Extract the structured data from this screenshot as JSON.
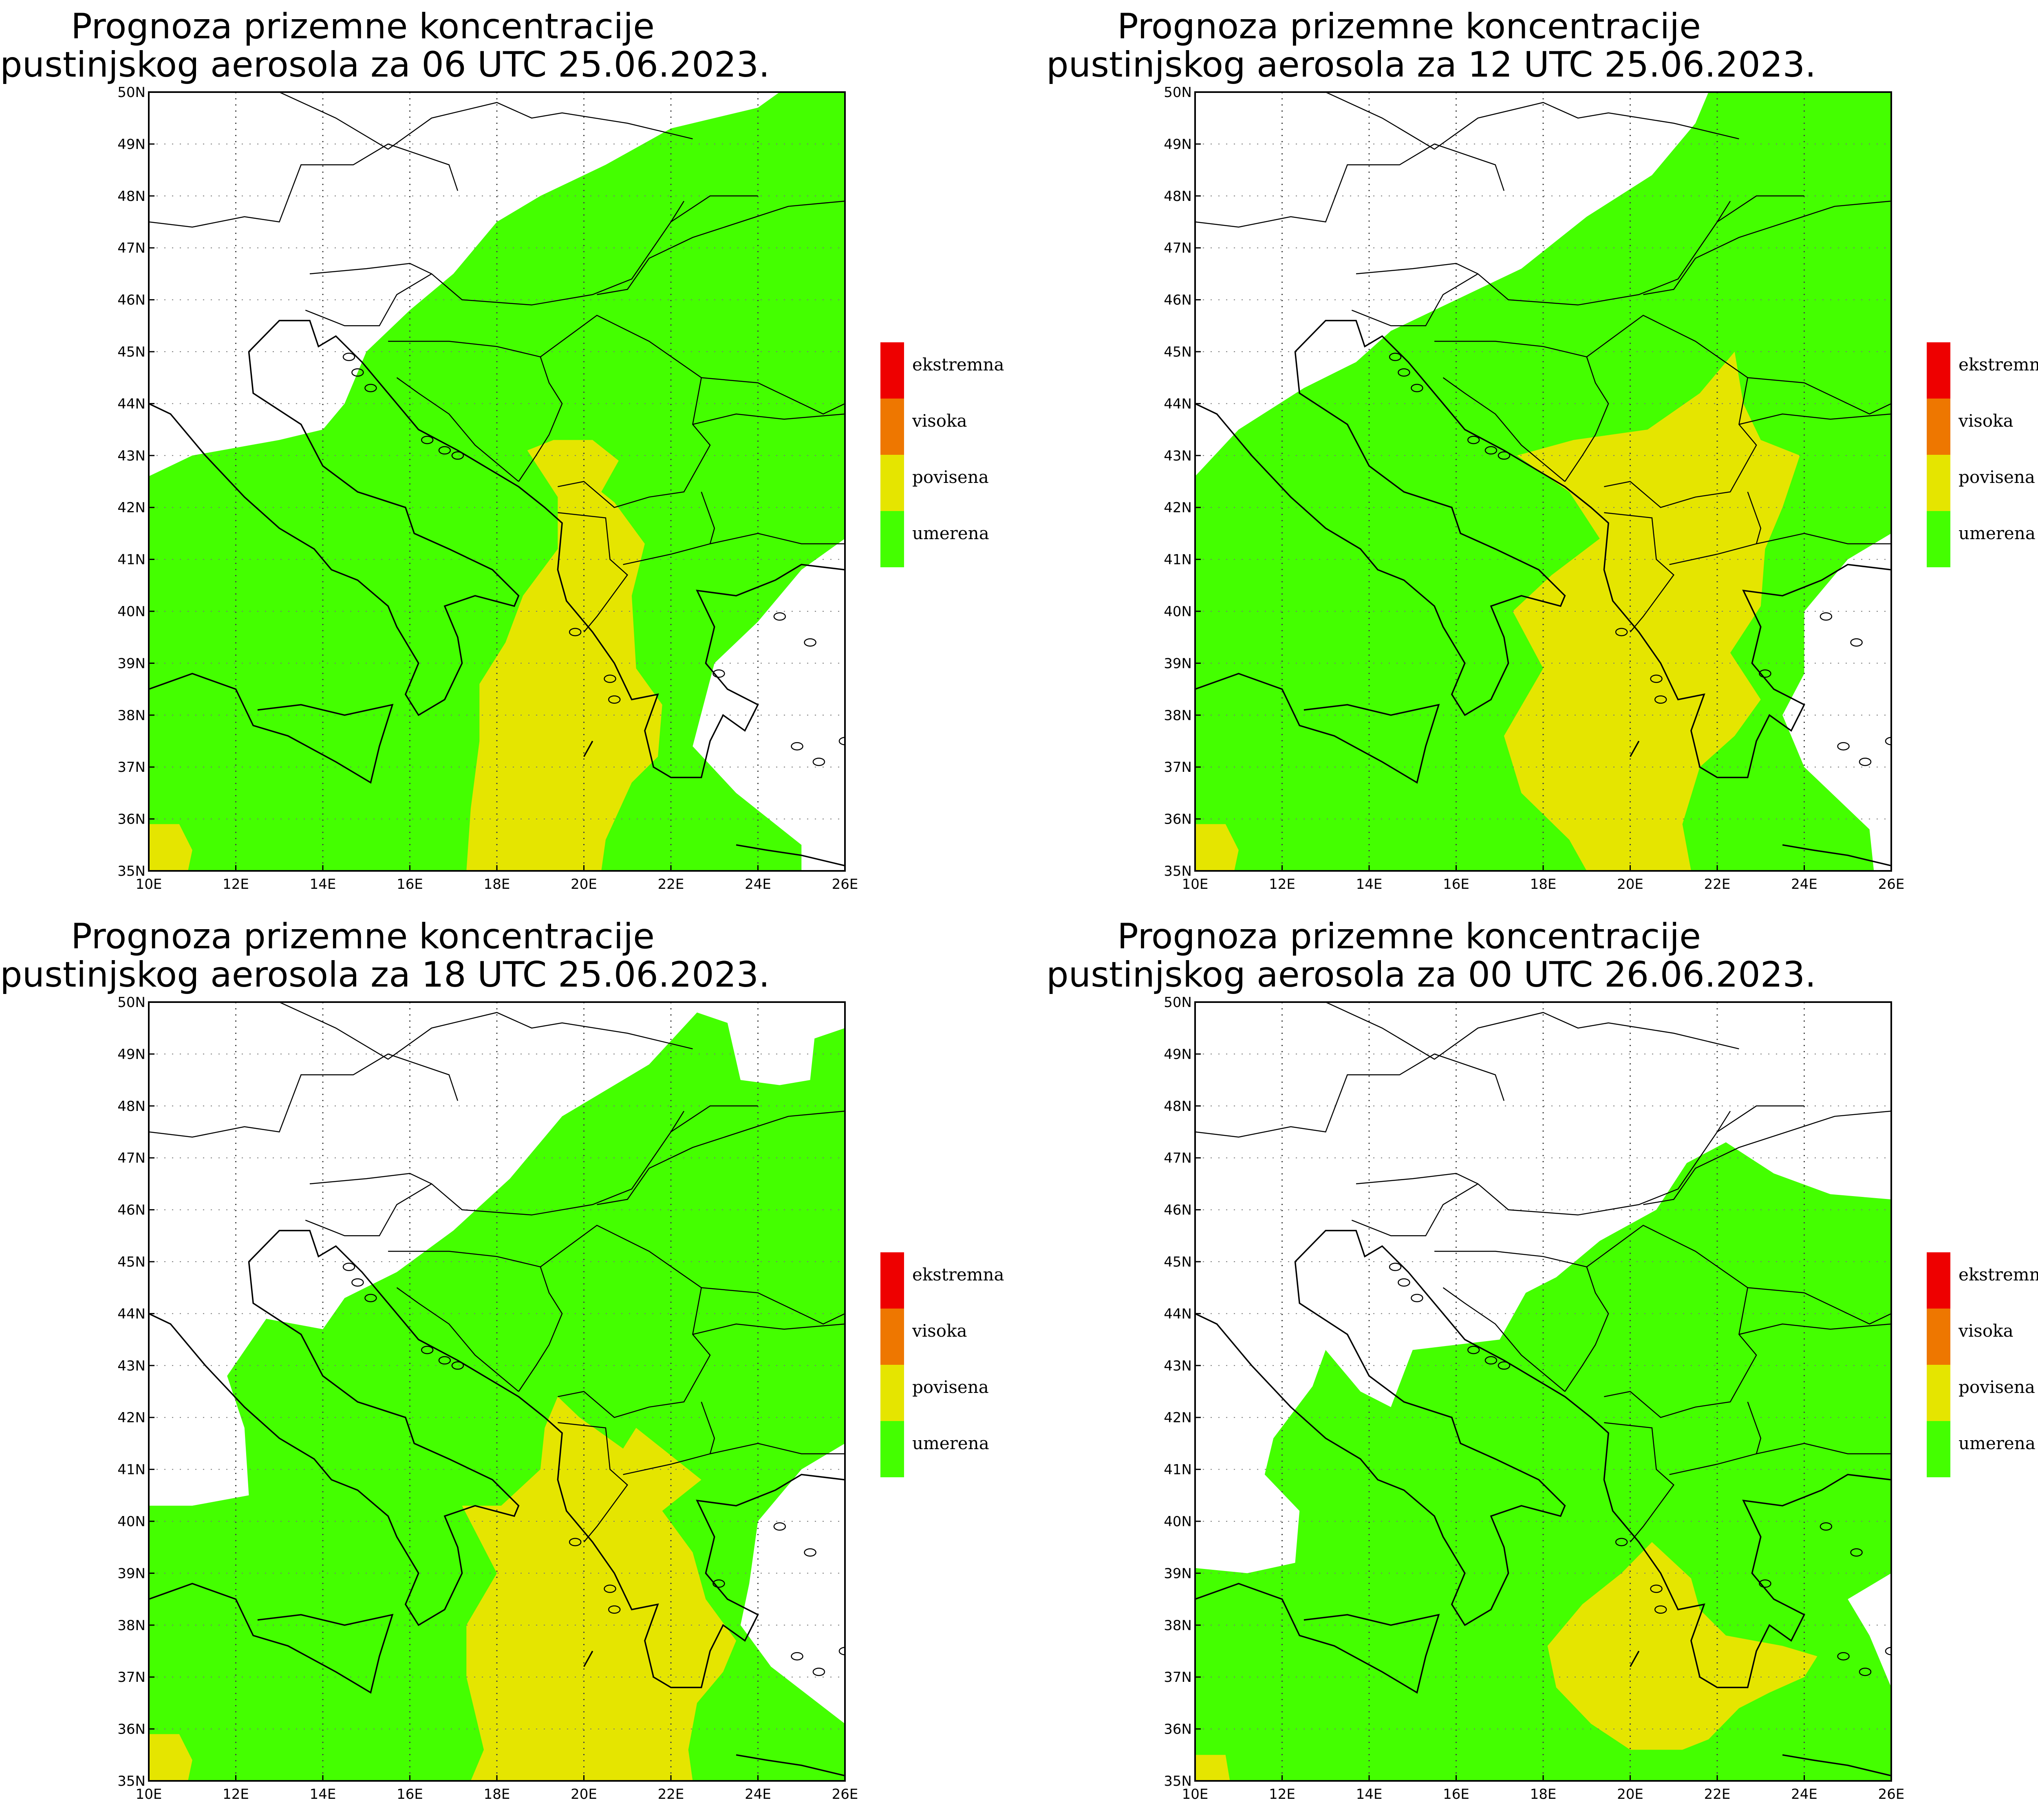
{
  "panels": [
    {
      "title_line1": "Prognoza prizemne koncentracije",
      "title_line2": "pustinjskog aerosola za 06 UTC 25.06.2023."
    },
    {
      "title_line1": "Prognoza prizemne koncentracije",
      "title_line2": "pustinjskog aerosola za 12 UTC 25.06.2023."
    },
    {
      "title_line1": "Prognoza prizemne koncentracije",
      "title_line2": "pustinjskog aerosola za 18 UTC 25.06.2023."
    },
    {
      "title_line1": "Prognoza prizemne koncentracije",
      "title_line2": "pustinjskog aerosola za 00 UTC 26.06.2023."
    }
  ],
  "axes": {
    "lon_labels": [
      "10E",
      "12E",
      "14E",
      "16E",
      "18E",
      "20E",
      "22E",
      "24E",
      "26E"
    ],
    "lat_labels": [
      "35N",
      "36N",
      "37N",
      "38N",
      "39N",
      "40N",
      "41N",
      "42N",
      "43N",
      "44N",
      "45N",
      "46N",
      "47N",
      "48N",
      "49N",
      "50N"
    ]
  },
  "legend": [
    {
      "label": "ekstremna",
      "color": "#ee0000"
    },
    {
      "label": "visoka",
      "color": "#ee7700"
    },
    {
      "label": "povisena",
      "color": "#e5e500"
    },
    {
      "label": "umerena",
      "color": "#44ff00"
    }
  ],
  "colors": {
    "umerena": "#44ff00",
    "povisena": "#e5e500",
    "land_border": "#000000",
    "grid": "#777777"
  }
}
